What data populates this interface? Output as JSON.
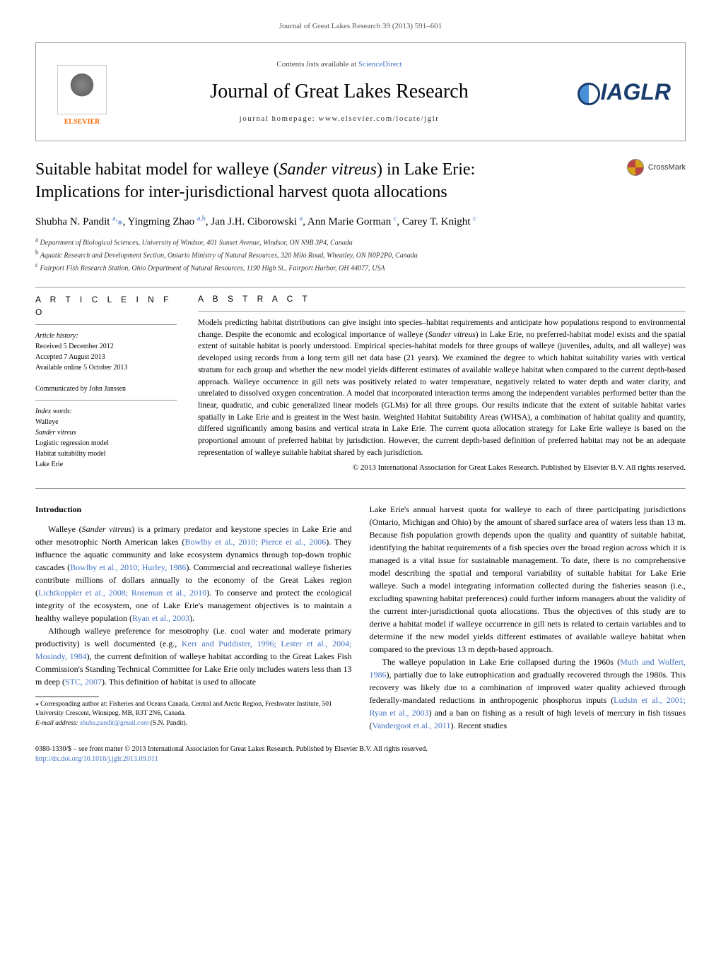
{
  "journal_ref": "Journal of Great Lakes Research 39 (2013) 591–601",
  "header": {
    "contents_prefix": "Contents lists available at ",
    "contents_link": "ScienceDirect",
    "journal_title": "Journal of Great Lakes Research",
    "homepage": "journal homepage: www.elsevier.com/locate/jglr",
    "elsevier_label": "ELSEVIER",
    "iaglr_label": "IAGLR"
  },
  "crossmark_label": "CrossMark",
  "title_line1": "Suitable habitat model for walleye (",
  "title_italic": "Sander vitreus",
  "title_line1_end": ") in Lake Erie:",
  "title_line2": "Implications for inter-jurisdictional harvest quota allocations",
  "authors_html": "Shubha N. Pandit <sup>a,</sup><span class='star'>⁎</span>, Yingming Zhao <sup>a,b</sup>, Jan J.H. Ciborowski <sup>a</sup>, Ann Marie Gorman <sup>c</sup>, Carey T. Knight <sup>c</sup>",
  "affiliations": {
    "a": "Department of Biological Sciences, University of Windsor, 401 Sunset Avenue, Windsor, ON N9B 3P4, Canada",
    "b": "Aquatic Research and Development Section, Ontario Ministry of Natural Resources, 320 Milo Road, Wheatley, ON N0P2P0, Canada",
    "c": "Fairport Fish Research Station, Ohio Department of Natural Resources, 1190 High St., Fairport Harbor, OH 44077, USA"
  },
  "info": {
    "heading": "A R T I C L E    I N F O",
    "history_label": "Article history:",
    "received": "Received 5 December 2012",
    "accepted": "Accepted 7 August 2013",
    "online": "Available online 5 October 2013",
    "communicated": "Communicated by John Janssen",
    "index_label": "Index words:",
    "keywords": [
      "Walleye",
      "Sander vitreus",
      "Logistic regression model",
      "Habitat suitability model",
      "Lake Erie"
    ]
  },
  "abstract": {
    "heading": "A B S T R A C T",
    "body": "Models predicting habitat distributions can give insight into species–habitat requirements and anticipate how populations respond to environmental change. Despite the economic and ecological importance of walleye (<span class='italic'>Sander vitreus</span>) in Lake Erie, no preferred-habitat model exists and the spatial extent of suitable habitat is poorly understood. Empirical species-habitat models for three groups of walleye (juveniles, adults, and all walleye) was developed using records from a long term gill net data base (21 years). We examined the degree to which habitat suitability varies with vertical stratum for each group and whether the new model yields different estimates of available walleye habitat when compared to the current depth-based approach. Walleye occurrence in gill nets was positively related to water temperature, negatively related to water depth and water clarity, and unrelated to dissolved oxygen concentration. A model that incorporated interaction terms among the independent variables performed better than the linear, quadratic, and cubic generalized linear models (GLMs) for all three groups. Our results indicate that the extent of suitable habitat varies spatially in Lake Erie and is greatest in the West basin. Weighted Habitat Suitability Areas (WHSA), a combination of habitat quality and quantity, differed significantly among basins and vertical strata in Lake Erie. The current quota allocation strategy for Lake Erie walleye is based on the proportional amount of preferred habitat by jurisdiction. However, the current depth-based definition of preferred habitat may not be an adequate representation of walleye suitable habitat shared by each jurisdiction.",
    "copyright": "© 2013 International Association for Great Lakes Research. Published by Elsevier B.V. All rights reserved."
  },
  "intro": {
    "heading": "Introduction",
    "para1": "Walleye (<span class='italic'>Sander vitreus</span>) is a primary predator and keystone species in Lake Erie and other mesotrophic North American lakes (<a>Bowlby et al., 2010; Pierce et al., 2006</a>). They influence the aquatic community and lake ecosystem dynamics through top-down trophic cascades (<a>Bowlby et al., 2010; Hurley, 1986</a>). Commercial and recreational walleye fisheries contribute millions of dollars annually to the economy of the Great Lakes region (<a>Lichtkoppler et al., 2008; Roseman et al., 2010</a>). To conserve and protect the ecological integrity of the ecosystem, one of Lake Erie's management objectives is to maintain a healthy walleye population (<a>Ryan et al., 2003</a>).",
    "para2": "Although walleye preference for mesotrophy (i.e. cool water and moderate primary productivity) is well documented (e.g., <a>Kerr and Puddister, 1996; Lester et al., 2004; Mosindy, 1984</a>), the current definition of walleye habitat according to the Great Lakes Fish Commission's Standing Technical Committee for Lake Erie only includes waters less than 13 m deep (<a>STC, 2007</a>). This definition of habitat is used to allocate",
    "para3": "Lake Erie's annual harvest quota for walleye to each of three participating jurisdictions (Ontario, Michigan and Ohio) by the amount of shared surface area of waters less than 13 m. Because fish population growth depends upon the quality and quantity of suitable habitat, identifying the habitat requirements of a fish species over the broad region across which it is managed is a vital issue for sustainable management. To date, there is no comprehensive model describing the spatial and temporal variability of suitable habitat for Lake Erie walleye. Such a model integrating information collected during the fisheries season (i.e., excluding spawning habitat preferences) could further inform managers about the validity of the current inter-jurisdictional quota allocations. Thus the objectives of this study are to derive a habitat model if walleye occurrence in gill nets is related to certain variables and to determine if the new model yields different estimates of available walleye habitat when compared to the previous 13 m depth-based approach.",
    "para4": "The walleye population in Lake Erie collapsed during the 1960s (<a>Muth and Wolfert, 1986</a>), partially due to lake eutrophication and gradually recovered through the 1980s. This recovery was likely due to a combination of improved water quality achieved through federally-mandated reductions in anthropogenic phosphorus inputs (<a>Ludsin et al., 2001; Ryan et al., 2003</a>) and a ban on fishing as a result of high levels of mercury in fish tissues (<a>Vandergoot et al., 2011</a>). Recent studies"
  },
  "footnote": {
    "corresponding": "⁎ Corresponding author at: Fisheries and Oceans Canada, Central and Arctic Region, Freshwater Institute, 501 University Crescent, Winnipeg, MB, R3T 2N6, Canada.",
    "email_label": "E-mail address: ",
    "email": "shuba.pandit@gmail.com",
    "email_suffix": " (S.N. Pandit)."
  },
  "bottom": {
    "line1": "0380-1330/$ – see front matter © 2013 International Association for Great Lakes Research. Published by Elsevier B.V. All rights reserved.",
    "doi": "http://dx.doi.org/10.1016/j.jglr.2013.09.011"
  },
  "colors": {
    "link": "#4472c4",
    "elsevier_orange": "#ff6600",
    "iaglr_blue": "#1a3d6d",
    "rule_gray": "#999999",
    "text": "#000000",
    "background": "#ffffff"
  },
  "typography": {
    "body_font": "Times New Roman",
    "body_size_pt": 13,
    "title_size_pt": 24,
    "journal_title_size_pt": 28,
    "abstract_size_pt": 11.5,
    "info_size_pt": 10,
    "footnote_size_pt": 9.5
  }
}
